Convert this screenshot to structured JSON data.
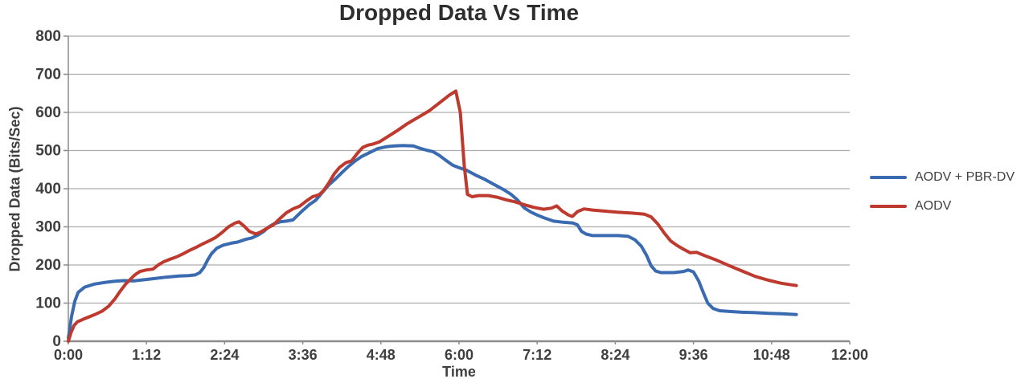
{
  "chart": {
    "title": "Dropped Data Vs Time",
    "xlabel": "Time",
    "ylabel": "Dropped Data (Bits/Sec)"
  },
  "legend": {
    "items": [
      {
        "label": "AODV + PBR-DV",
        "color": "#3a6ab0"
      },
      {
        "label": "AODV",
        "color": "#be3a2e"
      }
    ]
  },
  "colors": {
    "grid": "#adadad",
    "axis": "#8c8c8c",
    "tick_text": "#3f3f3f",
    "background": "#ffffff",
    "series_blue": "#3a6ab0",
    "series_red": "#be3a2e"
  },
  "chart_data": {
    "type": "line",
    "title": "Dropped Data Vs Time",
    "xlabel": "Time",
    "ylabel": "Dropped Data (Bits/Sec)",
    "x_unit": "hours",
    "xlim": [
      0,
      12
    ],
    "ylim": [
      0,
      800
    ],
    "grid": true,
    "legend_position": "right",
    "xticks": [
      {
        "h": 0,
        "label": "0:00"
      },
      {
        "h": 1.2,
        "label": "1:12"
      },
      {
        "h": 2.4,
        "label": "2:24"
      },
      {
        "h": 3.6,
        "label": "3:36"
      },
      {
        "h": 4.8,
        "label": "4:48"
      },
      {
        "h": 6,
        "label": "6:00"
      },
      {
        "h": 7.2,
        "label": "7:12"
      },
      {
        "h": 8.4,
        "label": "8:24"
      },
      {
        "h": 9.6,
        "label": "9:36"
      },
      {
        "h": 10.8,
        "label": "10:48"
      },
      {
        "h": 12,
        "label": "12:00"
      }
    ],
    "yticks": [
      {
        "v": 800,
        "label": "800"
      },
      {
        "v": 700,
        "label": "700"
      },
      {
        "v": 600,
        "label": "600"
      },
      {
        "v": 500,
        "label": "500"
      },
      {
        "v": 400,
        "label": "400"
      },
      {
        "v": 300,
        "label": "300"
      },
      {
        "v": 200,
        "label": "200"
      },
      {
        "v": 100,
        "label": "100"
      },
      {
        "v": 0,
        "label": "0"
      }
    ],
    "series": [
      {
        "name": "AODV + PBR-DV",
        "color": "#3a6ab0",
        "points": [
          [
            0,
            8
          ],
          [
            0.05,
            65
          ],
          [
            0.1,
            105
          ],
          [
            0.15,
            128
          ],
          [
            0.25,
            142
          ],
          [
            0.4,
            150
          ],
          [
            0.55,
            154
          ],
          [
            0.7,
            157
          ],
          [
            0.85,
            159
          ],
          [
            1.0,
            158
          ],
          [
            1.15,
            161
          ],
          [
            1.3,
            164
          ],
          [
            1.5,
            168
          ],
          [
            1.7,
            171
          ],
          [
            1.85,
            172
          ],
          [
            1.95,
            174
          ],
          [
            2.02,
            180
          ],
          [
            2.08,
            193
          ],
          [
            2.14,
            213
          ],
          [
            2.2,
            230
          ],
          [
            2.28,
            244
          ],
          [
            2.38,
            252
          ],
          [
            2.5,
            257
          ],
          [
            2.6,
            260
          ],
          [
            2.72,
            267
          ],
          [
            2.82,
            271
          ],
          [
            2.92,
            279
          ],
          [
            3.0,
            288
          ],
          [
            3.08,
            300
          ],
          [
            3.16,
            308
          ],
          [
            3.25,
            313
          ],
          [
            3.35,
            315
          ],
          [
            3.45,
            318
          ],
          [
            3.52,
            330
          ],
          [
            3.6,
            343
          ],
          [
            3.7,
            358
          ],
          [
            3.8,
            370
          ],
          [
            3.89,
            388
          ],
          [
            4.0,
            410
          ],
          [
            4.1,
            425
          ],
          [
            4.2,
            442
          ],
          [
            4.3,
            458
          ],
          [
            4.4,
            472
          ],
          [
            4.5,
            484
          ],
          [
            4.62,
            494
          ],
          [
            4.75,
            505
          ],
          [
            4.88,
            510
          ],
          [
            5.0,
            512
          ],
          [
            5.15,
            513
          ],
          [
            5.3,
            512
          ],
          [
            5.4,
            506
          ],
          [
            5.5,
            501
          ],
          [
            5.6,
            497
          ],
          [
            5.7,
            487
          ],
          [
            5.8,
            474
          ],
          [
            5.9,
            462
          ],
          [
            6.0,
            455
          ],
          [
            6.12,
            448
          ],
          [
            6.25,
            436
          ],
          [
            6.4,
            424
          ],
          [
            6.55,
            410
          ],
          [
            6.7,
            396
          ],
          [
            6.8,
            385
          ],
          [
            6.9,
            370
          ],
          [
            7.0,
            350
          ],
          [
            7.1,
            339
          ],
          [
            7.2,
            331
          ],
          [
            7.3,
            324
          ],
          [
            7.45,
            315
          ],
          [
            7.6,
            312
          ],
          [
            7.75,
            310
          ],
          [
            7.82,
            305
          ],
          [
            7.88,
            288
          ],
          [
            7.95,
            281
          ],
          [
            8.05,
            277
          ],
          [
            8.25,
            277
          ],
          [
            8.45,
            277
          ],
          [
            8.6,
            275
          ],
          [
            8.7,
            266
          ],
          [
            8.8,
            249
          ],
          [
            8.88,
            225
          ],
          [
            8.95,
            198
          ],
          [
            9.02,
            184
          ],
          [
            9.1,
            180
          ],
          [
            9.3,
            180
          ],
          [
            9.45,
            183
          ],
          [
            9.52,
            187
          ],
          [
            9.6,
            182
          ],
          [
            9.68,
            158
          ],
          [
            9.75,
            128
          ],
          [
            9.82,
            100
          ],
          [
            9.9,
            86
          ],
          [
            10.0,
            80
          ],
          [
            10.15,
            78
          ],
          [
            10.35,
            76
          ],
          [
            10.55,
            75
          ],
          [
            10.75,
            73
          ],
          [
            10.95,
            72
          ],
          [
            11.18,
            70
          ]
        ]
      },
      {
        "name": "AODV",
        "color": "#be3a2e",
        "points": [
          [
            0,
            0
          ],
          [
            0.04,
            22
          ],
          [
            0.09,
            42
          ],
          [
            0.14,
            51
          ],
          [
            0.22,
            57
          ],
          [
            0.32,
            64
          ],
          [
            0.42,
            71
          ],
          [
            0.52,
            79
          ],
          [
            0.62,
            92
          ],
          [
            0.72,
            112
          ],
          [
            0.8,
            132
          ],
          [
            0.88,
            150
          ],
          [
            0.95,
            162
          ],
          [
            1.02,
            174
          ],
          [
            1.1,
            183
          ],
          [
            1.2,
            187
          ],
          [
            1.3,
            189
          ],
          [
            1.38,
            200
          ],
          [
            1.46,
            208
          ],
          [
            1.56,
            215
          ],
          [
            1.66,
            221
          ],
          [
            1.76,
            229
          ],
          [
            1.86,
            238
          ],
          [
            1.96,
            246
          ],
          [
            2.06,
            255
          ],
          [
            2.16,
            263
          ],
          [
            2.26,
            272
          ],
          [
            2.36,
            285
          ],
          [
            2.46,
            300
          ],
          [
            2.56,
            310
          ],
          [
            2.62,
            313
          ],
          [
            2.7,
            302
          ],
          [
            2.78,
            288
          ],
          [
            2.88,
            281
          ],
          [
            2.96,
            287
          ],
          [
            3.05,
            296
          ],
          [
            3.15,
            305
          ],
          [
            3.25,
            322
          ],
          [
            3.35,
            337
          ],
          [
            3.45,
            347
          ],
          [
            3.55,
            354
          ],
          [
            3.65,
            367
          ],
          [
            3.75,
            379
          ],
          [
            3.85,
            384
          ],
          [
            3.92,
            395
          ],
          [
            4.0,
            415
          ],
          [
            4.08,
            438
          ],
          [
            4.16,
            455
          ],
          [
            4.26,
            468
          ],
          [
            4.35,
            473
          ],
          [
            4.45,
            495
          ],
          [
            4.52,
            508
          ],
          [
            4.6,
            514
          ],
          [
            4.68,
            517
          ],
          [
            4.78,
            523
          ],
          [
            4.9,
            536
          ],
          [
            5.05,
            552
          ],
          [
            5.2,
            570
          ],
          [
            5.4,
            590
          ],
          [
            5.55,
            605
          ],
          [
            5.7,
            625
          ],
          [
            5.85,
            645
          ],
          [
            5.95,
            656
          ],
          [
            6.02,
            600
          ],
          [
            6.08,
            460
          ],
          [
            6.13,
            385
          ],
          [
            6.2,
            379
          ],
          [
            6.3,
            382
          ],
          [
            6.45,
            382
          ],
          [
            6.6,
            377
          ],
          [
            6.72,
            371
          ],
          [
            6.85,
            366
          ],
          [
            7.0,
            358
          ],
          [
            7.15,
            351
          ],
          [
            7.3,
            346
          ],
          [
            7.42,
            349
          ],
          [
            7.5,
            355
          ],
          [
            7.58,
            342
          ],
          [
            7.68,
            331
          ],
          [
            7.74,
            327
          ],
          [
            7.82,
            340
          ],
          [
            7.92,
            347
          ],
          [
            8.05,
            344
          ],
          [
            8.25,
            341
          ],
          [
            8.45,
            338
          ],
          [
            8.65,
            336
          ],
          [
            8.85,
            333
          ],
          [
            8.95,
            326
          ],
          [
            9.05,
            308
          ],
          [
            9.15,
            284
          ],
          [
            9.25,
            263
          ],
          [
            9.35,
            251
          ],
          [
            9.45,
            241
          ],
          [
            9.55,
            232
          ],
          [
            9.65,
            233
          ],
          [
            9.78,
            224
          ],
          [
            9.95,
            213
          ],
          [
            10.15,
            198
          ],
          [
            10.35,
            184
          ],
          [
            10.55,
            170
          ],
          [
            10.75,
            160
          ],
          [
            10.95,
            152
          ],
          [
            11.1,
            148
          ],
          [
            11.18,
            146
          ]
        ]
      }
    ]
  }
}
